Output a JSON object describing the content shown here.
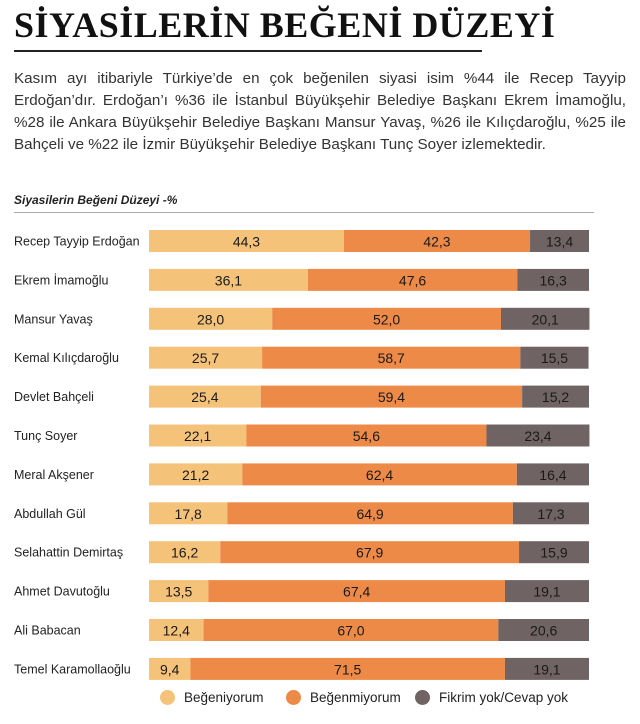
{
  "title": "SİYASİLERİN BEĞENİ DÜZEYİ",
  "intro": "Kasım ayı itibariyle Türkiye’de en çok beğenilen siyasi isim %44 ile Recep Tayyip Erdoğan’dır. Erdoğan’ı %36 ile İstanbul Büyükşehir Belediye Başkanı Ekrem İmamoğlu, %28 ile Ankara Büyükşehir Belediye Başkanı Mansur Yavaş, %26 ile Kılıçdaroğlu, %25 ile Bahçeli ve %22 ile İzmir Büyükşehir Belediye Başkanı Tunç Soyer izlemektedir.",
  "colors": {
    "begeniyorum": "#f5c27a",
    "begenmiyorum": "#ee8a47",
    "fikrim_yok": "#6f6463",
    "track": "#f0f0f0"
  },
  "chart_data": {
    "type": "bar",
    "orientation": "horizontal",
    "stacked": true,
    "title": "Siyasilerin Beğeni Düzeyi -%",
    "categories": [
      "Recep Tayyip Erdoğan",
      "Ekrem İmamoğlu",
      "Mansur Yavaş",
      "Kemal Kılıçdaroğlu",
      "Devlet Bahçeli",
      "Tunç Soyer",
      "Meral Akşener",
      "Abdullah Gül",
      "Selahattin Demirtaş",
      "Ahmet Davutoğlu",
      "Ali Babacan",
      "Temel Karamollaoğlu"
    ],
    "series": [
      {
        "name": "Beğeniyorum",
        "key": "begeniyorum",
        "values": [
          44.3,
          36.1,
          28.0,
          25.7,
          25.4,
          22.1,
          21.2,
          17.8,
          16.2,
          13.5,
          12.4,
          9.4
        ],
        "labels": [
          "44,3",
          "36,1",
          "28,0",
          "25,7",
          "25,4",
          "22,1",
          "21,2",
          "17,8",
          "16,2",
          "13,5",
          "12,4",
          "9,4"
        ]
      },
      {
        "name": "Beğenmiyorum",
        "key": "begenmiyorum",
        "values": [
          42.3,
          47.6,
          52.0,
          58.7,
          59.4,
          54.6,
          62.4,
          64.9,
          67.9,
          67.4,
          67.0,
          71.5
        ],
        "labels": [
          "42,3",
          "47,6",
          "52,0",
          "58,7",
          "59,4",
          "54,6",
          "62,4",
          "64,9",
          "67,9",
          "67,4",
          "67,0",
          "71,5"
        ]
      },
      {
        "name": "Fikrim yok/Cevap yok",
        "key": "fikrim_yok",
        "values": [
          13.4,
          16.3,
          20.1,
          15.5,
          15.2,
          23.4,
          16.4,
          17.3,
          15.9,
          19.1,
          20.6,
          19.1
        ],
        "labels": [
          "13,4",
          "16,3",
          "20,1",
          "15,5",
          "15,2",
          "23,4",
          "16,4",
          "17,3",
          "15,9",
          "19,1",
          "20,6",
          "19,1"
        ]
      }
    ],
    "xlim": [
      0,
      100
    ],
    "grid": false,
    "legend_position": "bottom"
  }
}
